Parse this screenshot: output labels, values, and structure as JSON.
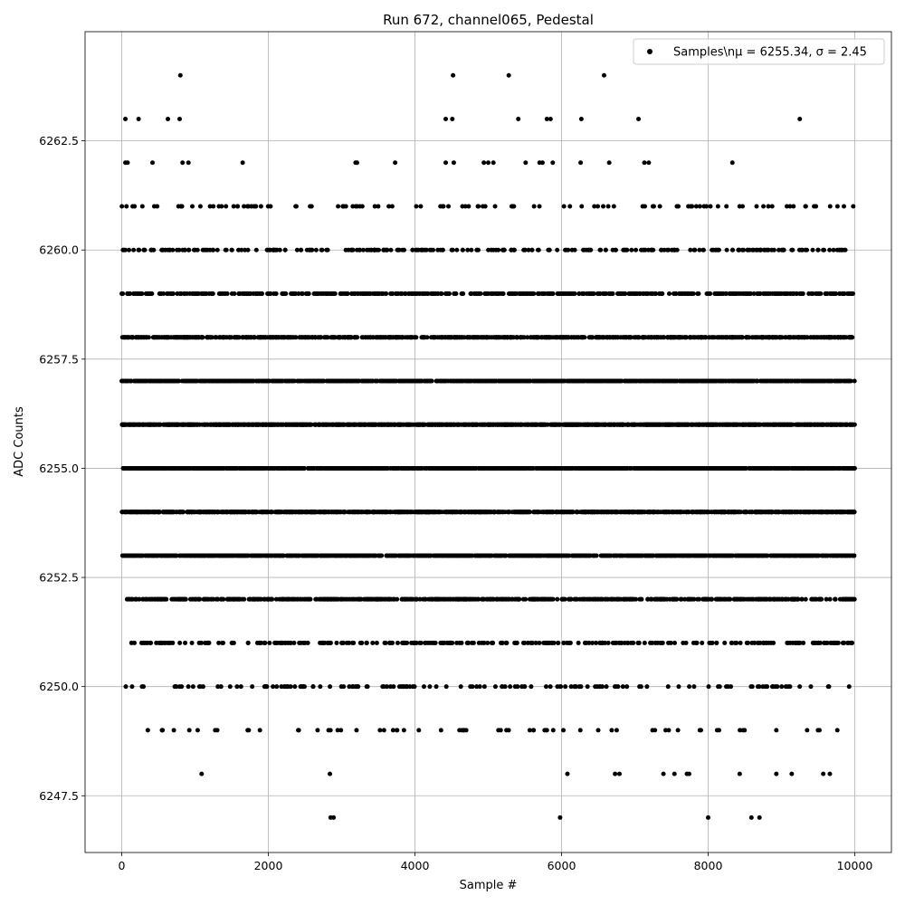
{
  "chart_data": {
    "type": "scatter",
    "title": "Run 672, channel065, Pedestal",
    "xlabel": "Sample #",
    "ylabel": "ADC Counts",
    "xlim": [
      -500,
      10500
    ],
    "ylim": [
      6246.2,
      6265.0
    ],
    "xticks": [
      0,
      2000,
      4000,
      6000,
      8000,
      10000
    ],
    "xtick_labels": [
      "0",
      "2000",
      "4000",
      "6000",
      "8000",
      "10000"
    ],
    "yticks": [
      6247.5,
      6250.0,
      6252.5,
      6255.0,
      6257.5,
      6260.0,
      6262.5
    ],
    "ytick_labels": [
      "6247.5",
      "6250.0",
      "6252.5",
      "6255.0",
      "6257.5",
      "6260.0",
      "6262.5"
    ],
    "grid": true,
    "legend": {
      "placement": "top-right",
      "label": "Samples\\nμ = 6255.34, σ = 2.45"
    },
    "series": [
      {
        "name": "Samples\\nμ = 6255.34, σ = 2.45",
        "color": "#000000",
        "marker": "circle",
        "n_samples": 10000,
        "mean": 6255.34,
        "sigma": 2.45,
        "discrete_levels": [
          6247,
          6248,
          6249,
          6250,
          6251,
          6252,
          6253,
          6254,
          6255,
          6256,
          6257,
          6258,
          6259,
          6260,
          6261,
          6262,
          6263,
          6264
        ],
        "outliers": [
          {
            "x": 800,
            "y": 6264
          },
          {
            "x": 4520,
            "y": 6264
          },
          {
            "x": 5280,
            "y": 6264
          },
          {
            "x": 6580,
            "y": 6264
          },
          {
            "x": 50,
            "y": 6263
          },
          {
            "x": 230,
            "y": 6263
          },
          {
            "x": 630,
            "y": 6263
          },
          {
            "x": 790,
            "y": 6263
          },
          {
            "x": 4420,
            "y": 6263
          },
          {
            "x": 4510,
            "y": 6263
          },
          {
            "x": 5410,
            "y": 6263
          },
          {
            "x": 5800,
            "y": 6263
          },
          {
            "x": 5850,
            "y": 6263
          },
          {
            "x": 6270,
            "y": 6263
          },
          {
            "x": 7050,
            "y": 6263
          },
          {
            "x": 9250,
            "y": 6263
          },
          {
            "x": 50,
            "y": 6262
          },
          {
            "x": 80,
            "y": 6262
          },
          {
            "x": 420,
            "y": 6262
          },
          {
            "x": 830,
            "y": 6262
          },
          {
            "x": 910,
            "y": 6262
          },
          {
            "x": 1650,
            "y": 6262
          },
          {
            "x": 3190,
            "y": 6262
          },
          {
            "x": 3210,
            "y": 6262
          },
          {
            "x": 3730,
            "y": 6262
          },
          {
            "x": 4420,
            "y": 6262
          },
          {
            "x": 4530,
            "y": 6262
          },
          {
            "x": 4940,
            "y": 6262
          },
          {
            "x": 5000,
            "y": 6262
          },
          {
            "x": 5070,
            "y": 6262
          },
          {
            "x": 5510,
            "y": 6262
          },
          {
            "x": 5700,
            "y": 6262
          },
          {
            "x": 5740,
            "y": 6262
          },
          {
            "x": 5880,
            "y": 6262
          },
          {
            "x": 6260,
            "y": 6262
          },
          {
            "x": 6650,
            "y": 6262
          },
          {
            "x": 7130,
            "y": 6262
          },
          {
            "x": 7190,
            "y": 6262
          },
          {
            "x": 8330,
            "y": 6262
          },
          {
            "x": 1090,
            "y": 6248
          },
          {
            "x": 2840,
            "y": 6248
          },
          {
            "x": 6080,
            "y": 6248
          },
          {
            "x": 6730,
            "y": 6248
          },
          {
            "x": 6790,
            "y": 6248
          },
          {
            "x": 7390,
            "y": 6248
          },
          {
            "x": 7540,
            "y": 6248
          },
          {
            "x": 7710,
            "y": 6248
          },
          {
            "x": 7740,
            "y": 6248
          },
          {
            "x": 8430,
            "y": 6248
          },
          {
            "x": 8930,
            "y": 6248
          },
          {
            "x": 9140,
            "y": 6248
          },
          {
            "x": 9570,
            "y": 6248
          },
          {
            "x": 9660,
            "y": 6248
          },
          {
            "x": 2850,
            "y": 6247
          },
          {
            "x": 2890,
            "y": 6247
          },
          {
            "x": 5980,
            "y": 6247
          },
          {
            "x": 8000,
            "y": 6247
          },
          {
            "x": 8590,
            "y": 6247
          },
          {
            "x": 8700,
            "y": 6247
          }
        ]
      }
    ]
  }
}
